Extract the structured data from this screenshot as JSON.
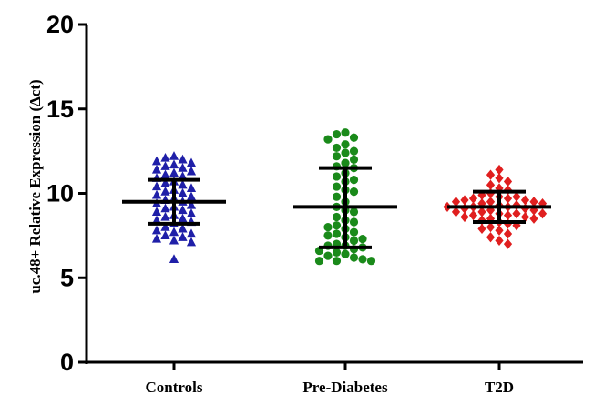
{
  "chart_data": {
    "type": "scatter",
    "ylabel": "uc.48+ Relative Expression (Δct)",
    "ylim": [
      0,
      20
    ],
    "yticks": [
      0,
      5,
      10,
      15,
      20
    ],
    "categories": [
      "Controls",
      "Pre-Diabetes",
      "T2D"
    ],
    "series": [
      {
        "category": "Controls",
        "color": "#1f1fa8",
        "marker": "triangle",
        "mean": 9.5,
        "sd_low": 8.2,
        "sd_high": 10.8,
        "values": [
          12.2,
          12.0,
          12.1,
          11.8,
          11.7,
          11.9,
          11.6,
          11.5,
          11.4,
          11.3,
          11.2,
          11.1,
          11.0,
          10.9,
          10.7,
          10.6,
          10.5,
          10.4,
          10.3,
          10.2,
          10.1,
          10.0,
          9.9,
          9.8,
          9.7,
          9.6,
          9.5,
          9.4,
          9.3,
          9.2,
          9.1,
          9.0,
          8.9,
          8.8,
          8.7,
          8.6,
          8.5,
          8.4,
          8.3,
          8.2,
          8.0,
          7.9,
          7.8,
          7.7,
          7.6,
          7.5,
          7.4,
          7.3,
          7.2,
          7.1,
          6.1
        ]
      },
      {
        "category": "Pre-Diabetes",
        "color": "#1a8a1a",
        "marker": "circle",
        "mean": 9.2,
        "sd_low": 6.8,
        "sd_high": 11.5,
        "values": [
          13.6,
          13.5,
          13.3,
          13.2,
          12.9,
          12.7,
          12.5,
          12.2,
          12.0,
          11.8,
          11.5,
          11.2,
          11.0,
          10.7,
          10.4,
          10.1,
          9.8,
          9.5,
          9.2,
          8.9,
          8.6,
          8.3,
          8.1,
          7.9,
          7.7,
          7.5,
          7.3,
          7.2,
          7.0,
          6.9,
          6.8,
          6.7,
          6.6,
          6.5,
          6.4,
          6.3,
          6.2,
          6.1,
          6.0,
          6.0,
          6.0,
          8.0,
          7.6,
          7.4,
          8.4,
          9.0,
          10.2,
          10.8,
          11.6,
          12.4,
          6.9
        ]
      },
      {
        "category": "T2D",
        "color": "#e01f1f",
        "marker": "diamond",
        "mean": 9.2,
        "sd_low": 8.3,
        "sd_high": 10.1,
        "values": [
          11.4,
          11.1,
          10.9,
          10.7,
          10.5,
          10.3,
          10.2,
          10.0,
          9.9,
          9.8,
          9.7,
          9.7,
          9.6,
          9.6,
          9.5,
          9.5,
          9.4,
          9.4,
          9.3,
          9.3,
          9.2,
          9.2,
          9.1,
          9.1,
          9.0,
          9.0,
          8.9,
          8.9,
          8.8,
          8.8,
          8.7,
          8.7,
          8.6,
          8.6,
          8.5,
          8.4,
          8.3,
          8.2,
          8.1,
          8.0,
          7.9,
          7.8,
          7.6,
          7.4,
          7.2,
          7.0,
          9.8,
          9.5,
          9.2,
          8.8,
          8.5
        ]
      }
    ]
  }
}
